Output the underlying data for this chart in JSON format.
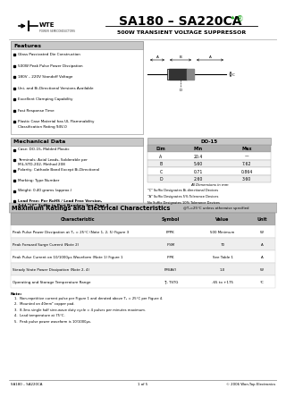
{
  "title_part": "SA180 – SA220CA",
  "title_sub": "500W TRANSIENT VOLTAGE SUPPRESSOR",
  "features_title": "Features",
  "features": [
    "Glass Passivated Die Construction",
    "500W Peak Pulse Power Dissipation",
    "180V – 220V Standoff Voltage",
    "Uni- and Bi-Directional Versions Available",
    "Excellent Clamping Capability",
    "Fast Response Time",
    "Plastic Case Material has UL Flammability\nClassification Rating 94V-0"
  ],
  "mech_title": "Mechanical Data",
  "mech_items": [
    "Case: DO-15, Molded Plastic",
    "Terminals: Axial Leads, Solderable per\nMIL-STD-202, Method 208",
    "Polarity: Cathode Band Except Bi-Directional",
    "Marking: Type Number",
    "Weight: 0.40 grams (approx.)",
    "Lead Free: Per RoHS / Lead Free Version,\nAdd “LF” Suffix to Part Number, See Page 3"
  ],
  "mech_bold_last": true,
  "table_title": "DO-15",
  "table_headers": [
    "Dim",
    "Min",
    "Max"
  ],
  "table_rows": [
    [
      "A",
      "20.4",
      "—"
    ],
    [
      "B",
      "5.60",
      "7.62"
    ],
    [
      "C",
      "0.71",
      "0.864"
    ],
    [
      "D",
      "2.60",
      "3.60"
    ]
  ],
  "table_note": "All Dimensions in mm",
  "suffix_notes": [
    "\"C\" Suffix Designates Bi-directional Devices",
    "\"A\" Suffix Designates 5% Tolerance Devices",
    "No Suffix Designates 10% Tolerance Devices"
  ],
  "max_ratings_title": "Maximum Ratings and Electrical Characteristics",
  "max_ratings_note": "@Tₐ=25°C unless otherwise specified",
  "char_headers": [
    "Characteristic",
    "Symbol",
    "Value",
    "Unit"
  ],
  "char_rows": [
    [
      "Peak Pulse Power Dissipation at Tₐ = 25°C (Note 1, 2, 5) Figure 3",
      "PPPK",
      "500 Minimum",
      "W"
    ],
    [
      "Peak Forward Surge Current (Note 2)",
      "IFSM",
      "70",
      "A"
    ],
    [
      "Peak Pulse Current on 10/1000μs Waveform (Note 1) Figure 1",
      "IPPK",
      "See Table 1",
      "A"
    ],
    [
      "Steady State Power Dissipation (Note 2, 4)",
      "PM(AV)",
      "1.0",
      "W"
    ],
    [
      "Operating and Storage Temperature Range",
      "TJ, TSTG",
      "-65 to +175",
      "°C"
    ]
  ],
  "notes_title": "Note:",
  "notes": [
    "1.  Non-repetitive current pulse per Figure 1 and derated above Tₐ = 25°C per Figure 4.",
    "2.  Mounted on 40mm² copper pad.",
    "3.  8.3ms single half sine-wave duty cycle = 4 pulses per minutes maximum.",
    "4.  Lead temperature at 75°C.",
    "5.  Peak pulse power waveform is 10/1000μs."
  ],
  "footer_left": "SA180 – SA220CA",
  "footer_center": "1 of 5",
  "footer_right": "© 2006 Won-Top Electronics",
  "bg_color": "#ffffff",
  "green_color": "#22aa22",
  "section_header_bg": "#c8c8c8",
  "table_header_bg": "#b0b0b0",
  "max_header_bg": "#c0c0c0",
  "row_alt_bg": "#eeeeee"
}
